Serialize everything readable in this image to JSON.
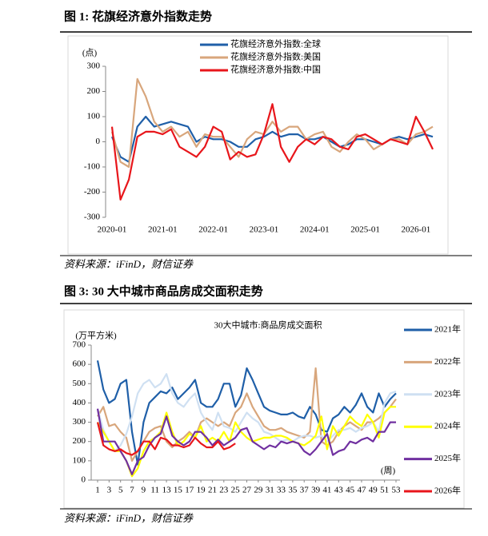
{
  "figures": [
    {
      "caption": "图 1:  花旗经济意外指数走势",
      "source": "资料来源：iFinD，财信证券"
    },
    {
      "caption": "图 3:  30 大中城市商品房成交面积走势",
      "source": "资料来源：iFinD，财信证券"
    }
  ],
  "chart_data": [
    {
      "type": "line",
      "y_label": "(点)",
      "legend": "top",
      "categories": [
        "2020-01",
        "2020-03",
        "2020-05",
        "2020-07",
        "2020-09",
        "2020-11",
        "2021-01",
        "2021-03",
        "2021-05",
        "2021-07",
        "2021-09",
        "2021-11",
        "2022-01",
        "2022-03",
        "2022-05",
        "2022-07",
        "2022-09",
        "2022-11",
        "2023-01",
        "2023-03",
        "2023-05",
        "2023-07",
        "2023-09",
        "2023-11",
        "2024-01",
        "2024-03",
        "2024-05",
        "2024-07",
        "2024-09",
        "2024-11",
        "2025-01",
        "2025-03",
        "2025-05",
        "2025-07",
        "2025-09",
        "2025-11",
        "2026-01",
        "2026-03",
        "2026-05"
      ],
      "xticks": [
        "2020-01",
        "2021-01",
        "2022-01",
        "2023-01",
        "2024-01",
        "2025-01",
        "2026-01"
      ],
      "ylim": [
        -300,
        300
      ],
      "yticks": [
        -300,
        -200,
        -100,
        0,
        100,
        200,
        300
      ],
      "series": [
        {
          "name": "花旗经济意外指数:全球",
          "color": "#1f5fa8",
          "values": [
            20,
            -60,
            -80,
            60,
            100,
            60,
            70,
            80,
            70,
            60,
            0,
            20,
            10,
            10,
            0,
            -20,
            -20,
            10,
            20,
            40,
            20,
            30,
            30,
            10,
            10,
            20,
            0,
            -20,
            -10,
            10,
            10,
            0,
            -10,
            10,
            20,
            10,
            20,
            30,
            20
          ]
        },
        {
          "name": "花旗经济意外指数:美国",
          "color": "#d8a67c",
          "values": [
            40,
            -80,
            -100,
            250,
            180,
            80,
            40,
            60,
            20,
            40,
            -20,
            30,
            20,
            20,
            -20,
            -60,
            10,
            40,
            30,
            80,
            40,
            60,
            60,
            10,
            30,
            40,
            -20,
            -40,
            0,
            30,
            10,
            -30,
            -10,
            10,
            10,
            -10,
            30,
            40,
            60
          ]
        },
        {
          "name": "花旗经济意外指数:中国",
          "color": "#e8161b",
          "values": [
            60,
            -230,
            -150,
            20,
            40,
            40,
            30,
            50,
            -20,
            -40,
            -60,
            -20,
            60,
            40,
            -70,
            -40,
            -60,
            -50,
            30,
            150,
            -20,
            -80,
            -20,
            10,
            -10,
            20,
            10,
            -20,
            -30,
            20,
            30,
            10,
            -10,
            10,
            0,
            -10,
            100,
            40,
            -30
          ]
        }
      ]
    },
    {
      "type": "line",
      "title": "30大中城市:商品房成交面积",
      "y_label": "(万平方米)",
      "x_label": "(周)",
      "legend": "right",
      "x": [
        1,
        2,
        3,
        4,
        5,
        6,
        7,
        8,
        9,
        10,
        11,
        12,
        13,
        14,
        15,
        16,
        17,
        18,
        19,
        20,
        21,
        22,
        23,
        24,
        25,
        26,
        27,
        28,
        29,
        30,
        31,
        32,
        33,
        34,
        35,
        36,
        37,
        38,
        39,
        40,
        41,
        42,
        43,
        44,
        45,
        46,
        47,
        48,
        49,
        50,
        51,
        52,
        53
      ],
      "xlim": [
        1,
        53
      ],
      "xticks": [
        1,
        3,
        5,
        7,
        9,
        11,
        13,
        15,
        17,
        19,
        21,
        23,
        25,
        27,
        29,
        31,
        33,
        35,
        37,
        39,
        41,
        43,
        45,
        47,
        49,
        51,
        53
      ],
      "ylim": [
        0,
        700
      ],
      "yticks": [
        0,
        100,
        200,
        300,
        400,
        500,
        600,
        700
      ],
      "series": [
        {
          "name": "2021年",
          "color": "#1f5fa8",
          "values": [
            620,
            470,
            400,
            420,
            500,
            520,
            250,
            80,
            300,
            400,
            430,
            460,
            450,
            480,
            420,
            450,
            480,
            520,
            400,
            380,
            380,
            420,
            500,
            500,
            380,
            440,
            580,
            520,
            450,
            380,
            360,
            350,
            340,
            340,
            350,
            330,
            320,
            380,
            340,
            260,
            250,
            320,
            340,
            380,
            350,
            390,
            450,
            380,
            350,
            450,
            380,
            420,
            450
          ]
        },
        {
          "name": "2022年",
          "color": "#d8a67c",
          "values": [
            330,
            380,
            280,
            290,
            250,
            220,
            100,
            150,
            200,
            250,
            270,
            280,
            200,
            170,
            200,
            220,
            250,
            220,
            300,
            320,
            300,
            280,
            300,
            280,
            350,
            380,
            450,
            380,
            330,
            280,
            260,
            260,
            270,
            250,
            240,
            230,
            220,
            250,
            580,
            200,
            180,
            200,
            250,
            280,
            300,
            280,
            260,
            300,
            300,
            320,
            350,
            380,
            420
          ]
        },
        {
          "name": "2023年",
          "color": "#cfe0f2",
          "values": [
            370,
            260,
            200,
            150,
            180,
            240,
            330,
            450,
            500,
            520,
            480,
            500,
            550,
            450,
            400,
            380,
            420,
            450,
            350,
            300,
            260,
            350,
            280,
            270,
            250,
            300,
            350,
            320,
            300,
            250,
            240,
            220,
            200,
            210,
            200,
            220,
            230,
            230,
            220,
            230,
            200,
            230,
            260,
            260,
            270,
            250,
            270,
            280,
            300,
            250,
            400,
            450,
            460
          ]
        },
        {
          "name": "2024年",
          "color": "#ffff00",
          "values": [
            300,
            250,
            200,
            150,
            150,
            100,
            20,
            60,
            150,
            200,
            220,
            250,
            350,
            250,
            180,
            200,
            240,
            220,
            280,
            200,
            220,
            200,
            250,
            200,
            300,
            250,
            220,
            200,
            210,
            220,
            220,
            230,
            230,
            220,
            200,
            190,
            180,
            200,
            230,
            330,
            160,
            280,
            230,
            280,
            330,
            300,
            280,
            340,
            300,
            220,
            350,
            380,
            380
          ]
        },
        {
          "name": "2025年",
          "color": "#7030a0",
          "values": [
            370,
            200,
            200,
            200,
            150,
            100,
            30,
            100,
            120,
            180,
            220,
            240,
            330,
            230,
            200,
            180,
            200,
            250,
            250,
            220,
            180,
            210,
            180,
            200,
            220,
            260,
            270,
            200,
            180,
            160,
            180,
            170,
            200,
            190,
            200,
            190,
            150,
            130,
            160,
            200,
            240,
            130,
            150,
            160,
            200,
            190,
            210,
            220,
            200,
            250,
            250,
            300,
            300
          ]
        },
        {
          "name": "2026年",
          "color": "#e8161b",
          "values": [
            300,
            180,
            160,
            150,
            160,
            140,
            130,
            150,
            200,
            200,
            160,
            220,
            210,
            180,
            180,
            170,
            180,
            220,
            190,
            170,
            170,
            200,
            160,
            170,
            190,
            null,
            null,
            null,
            null,
            null,
            null,
            null,
            null,
            null,
            null,
            null,
            null,
            null,
            null,
            null,
            null,
            null,
            null,
            null,
            null,
            null,
            null,
            null,
            null,
            null,
            null,
            null,
            null
          ]
        }
      ]
    }
  ]
}
